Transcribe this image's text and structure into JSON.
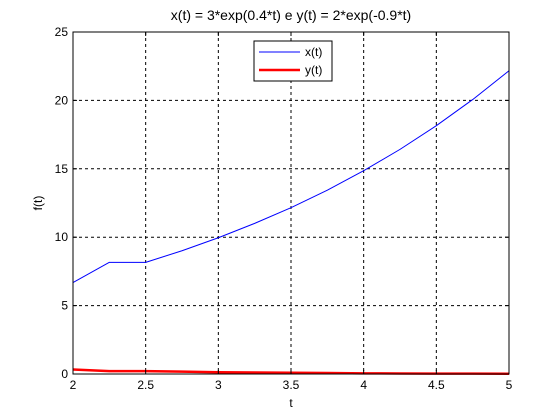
{
  "chart_data": {
    "type": "line",
    "title": "x(t) = 3*exp(0.4*t) e y(t) = 2*exp(-0.9*t)",
    "xlabel": "t",
    "ylabel": "f(t)",
    "xlim": [
      2,
      5
    ],
    "ylim": [
      0,
      25
    ],
    "xticks": [
      2,
      2.5,
      3,
      3.5,
      4,
      4.5,
      5
    ],
    "xtick_labels": [
      "2",
      "2.5",
      "3",
      "3.5",
      "4",
      "4.5",
      "5"
    ],
    "yticks": [
      0,
      5,
      10,
      15,
      20,
      25
    ],
    "ytick_labels": [
      "0",
      "5",
      "10",
      "15",
      "20",
      "25"
    ],
    "grid": true,
    "legend_position": "top-right",
    "x": [
      2.0,
      2.25,
      2.5,
      2.75,
      3.0,
      3.25,
      3.5,
      3.75,
      4.0,
      4.25,
      4.5,
      4.75,
      5.0
    ],
    "series": [
      {
        "name": "x(t)",
        "color": "#0000ff",
        "values": [
          6.68,
          8.16,
          8.16,
          9.01,
          9.96,
          11.01,
          12.16,
          13.44,
          14.86,
          16.42,
          18.15,
          20.06,
          22.17
        ]
      },
      {
        "name": "y(t)",
        "color": "#ff0000",
        "values": [
          0.33,
          0.21,
          0.21,
          0.17,
          0.13,
          0.11,
          0.09,
          0.07,
          0.05,
          0.04,
          0.03,
          0.03,
          0.02
        ]
      }
    ]
  }
}
